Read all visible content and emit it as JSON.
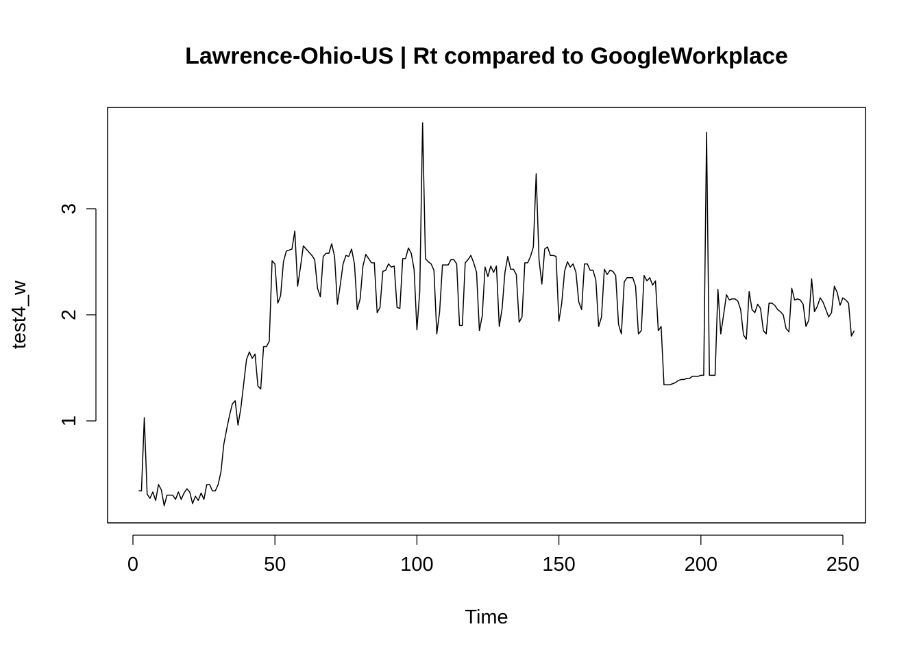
{
  "chart_data": {
    "type": "line",
    "title": "Lawrence-Ohio-US | Rt compared to GoogleWorkplace",
    "xlabel": "Time",
    "ylabel": "test4_w",
    "xlim": [
      0,
      250
    ],
    "ylim": [
      0.17,
      3.82
    ],
    "x_ticks": [
      0,
      50,
      100,
      150,
      200,
      250
    ],
    "y_ticks": [
      1,
      2,
      3
    ],
    "grid": false,
    "legend": "none",
    "line_color": "#000000",
    "series": [
      {
        "x_start": 2,
        "values": [
          0.34,
          0.34,
          1.03,
          0.31,
          0.27,
          0.33,
          0.25,
          0.4,
          0.35,
          0.2,
          0.3,
          0.3,
          0.3,
          0.26,
          0.33,
          0.26,
          0.32,
          0.36,
          0.33,
          0.22,
          0.29,
          0.25,
          0.32,
          0.26,
          0.4,
          0.4,
          0.34,
          0.34,
          0.4,
          0.52,
          0.78,
          0.92,
          1.05,
          1.16,
          1.19,
          0.96,
          1.12,
          1.35,
          1.58,
          1.65,
          1.59,
          1.63,
          1.33,
          1.3,
          1.7,
          1.7,
          1.75,
          2.51,
          2.48,
          2.11,
          2.18,
          2.5,
          2.6,
          2.61,
          2.62,
          2.79,
          2.27,
          2.45,
          2.65,
          2.62,
          2.59,
          2.56,
          2.52,
          2.25,
          2.17,
          2.55,
          2.58,
          2.58,
          2.67,
          2.55,
          2.1,
          2.28,
          2.48,
          2.56,
          2.55,
          2.62,
          2.48,
          2.05,
          2.15,
          2.46,
          2.57,
          2.53,
          2.49,
          2.49,
          2.02,
          2.07,
          2.41,
          2.42,
          2.48,
          2.45,
          2.46,
          2.07,
          2.06,
          2.53,
          2.53,
          2.63,
          2.58,
          2.43,
          1.86,
          2.22,
          3.81,
          2.53,
          2.5,
          2.48,
          2.42,
          1.82,
          2.03,
          2.47,
          2.47,
          2.47,
          2.52,
          2.52,
          2.48,
          1.9,
          1.9,
          2.49,
          2.52,
          2.56,
          2.49,
          2.4,
          1.85,
          1.99,
          2.45,
          2.36,
          2.46,
          2.4,
          2.46,
          1.89,
          2.06,
          2.4,
          2.55,
          2.43,
          2.43,
          2.38,
          1.93,
          1.98,
          2.49,
          2.49,
          2.55,
          2.64,
          3.33,
          2.52,
          2.29,
          2.62,
          2.64,
          2.56,
          2.56,
          2.55,
          1.94,
          2.11,
          2.41,
          2.5,
          2.45,
          2.48,
          2.4,
          2.12,
          2.05,
          2.48,
          2.48,
          2.42,
          2.42,
          2.33,
          1.89,
          1.98,
          2.43,
          2.38,
          2.42,
          2.41,
          2.37,
          1.91,
          1.82,
          2.31,
          2.35,
          2.35,
          2.35,
          2.27,
          1.82,
          1.85,
          2.37,
          2.32,
          2.35,
          2.28,
          2.32,
          1.85,
          1.89,
          1.34,
          1.34,
          1.34,
          1.35,
          1.36,
          1.38,
          1.39,
          1.39,
          1.4,
          1.4,
          1.42,
          1.42,
          1.42,
          1.43,
          1.43,
          3.72,
          1.43,
          1.43,
          1.43,
          2.24,
          1.82,
          2.0,
          2.19,
          2.14,
          2.15,
          2.15,
          2.13,
          2.05,
          1.81,
          1.77,
          2.22,
          2.05,
          2.02,
          2.1,
          2.06,
          1.85,
          1.82,
          2.11,
          2.11,
          2.09,
          2.05,
          2.03,
          2.0,
          1.87,
          1.84,
          2.25,
          2.14,
          2.15,
          2.14,
          2.1,
          1.89,
          1.95,
          2.34,
          2.03,
          2.08,
          2.16,
          2.12,
          2.05,
          1.98,
          2.02,
          2.27,
          2.21,
          2.09,
          2.16,
          2.14,
          2.11,
          1.8,
          1.85
        ]
      }
    ]
  }
}
